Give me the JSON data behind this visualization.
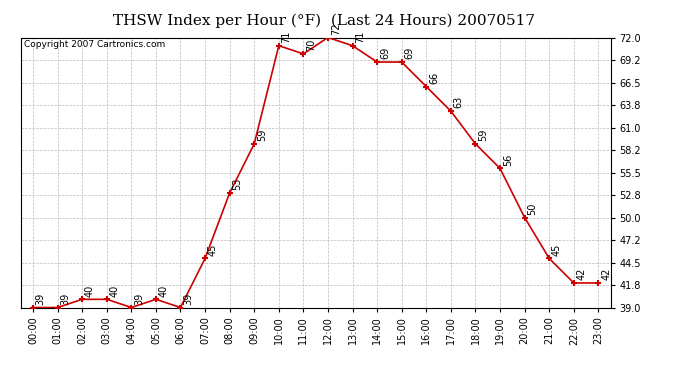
{
  "title": "THSW Index per Hour (°F)  (Last 24 Hours) 20070517",
  "copyright": "Copyright 2007 Cartronics.com",
  "hours": [
    "00:00",
    "01:00",
    "02:00",
    "03:00",
    "04:00",
    "05:00",
    "06:00",
    "07:00",
    "08:00",
    "09:00",
    "10:00",
    "11:00",
    "12:00",
    "13:00",
    "14:00",
    "15:00",
    "16:00",
    "17:00",
    "18:00",
    "19:00",
    "20:00",
    "21:00",
    "22:00",
    "23:00"
  ],
  "values": [
    39,
    39,
    40,
    40,
    39,
    40,
    39,
    45,
    53,
    59,
    71,
    70,
    72,
    71,
    69,
    69,
    66,
    63,
    59,
    56,
    50,
    45,
    42,
    42
  ],
  "ylim_min": 39.0,
  "ylim_max": 72.0,
  "yticks": [
    39.0,
    41.8,
    44.5,
    47.2,
    50.0,
    52.8,
    55.5,
    58.2,
    61.0,
    63.8,
    66.5,
    69.2,
    72.0
  ],
  "line_color": "#cc0000",
  "marker_color": "#cc0000",
  "bg_color": "#ffffff",
  "grid_color": "#bbbbbb",
  "title_fontsize": 11,
  "label_fontsize": 7,
  "tick_fontsize": 7,
  "copyright_fontsize": 6.5
}
